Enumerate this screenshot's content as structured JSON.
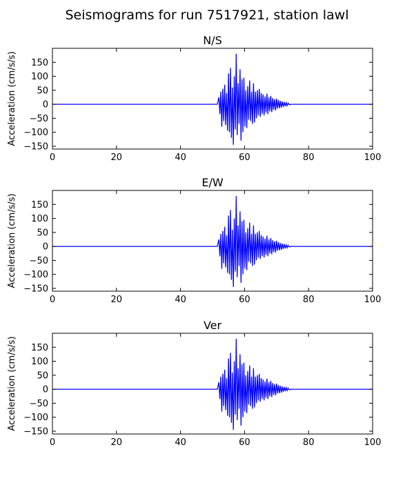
{
  "figure": {
    "title": "Seismograms for run 7517921, station lawl",
    "background": "#ffffff",
    "trace_color": "#0000ff"
  },
  "chart_data": [
    {
      "type": "line",
      "title": "N/S",
      "xlabel": "",
      "ylabel": "Acceleration (cm/s/s)",
      "xlim": [
        0,
        100
      ],
      "ylim": [
        -160,
        200
      ],
      "xticks": [
        "0",
        "20",
        "40",
        "60",
        "80",
        "100"
      ],
      "yticks": [
        "150",
        "100",
        "50",
        "0",
        "−50",
        "−100",
        "−150"
      ],
      "grid": false,
      "x": [
        0,
        51.5,
        52.0,
        52.3,
        52.6,
        52.9,
        53.2,
        53.5,
        53.8,
        54.1,
        54.4,
        54.7,
        55.0,
        55.3,
        55.6,
        55.9,
        56.2,
        56.5,
        56.8,
        57.1,
        57.4,
        57.7,
        58.0,
        58.3,
        58.6,
        58.9,
        59.2,
        59.5,
        59.8,
        60.1,
        60.4,
        60.7,
        61.0,
        61.3,
        61.6,
        61.9,
        62.2,
        62.5,
        62.8,
        63.1,
        63.4,
        63.7,
        64.0,
        64.3,
        64.6,
        64.9,
        65.2,
        65.5,
        65.8,
        66.1,
        66.4,
        66.7,
        67.0,
        67.3,
        67.6,
        67.9,
        68.2,
        68.5,
        68.8,
        69.1,
        69.4,
        69.7,
        70.0,
        70.3,
        70.6,
        70.9,
        71.2,
        71.5,
        71.8,
        72.1,
        72.4,
        72.7,
        73.0,
        73.3,
        73.6,
        74.0,
        74.5,
        100
      ],
      "values": [
        0,
        0,
        25,
        -35,
        45,
        -80,
        55,
        -60,
        70,
        -75,
        40,
        -95,
        110,
        -100,
        130,
        -120,
        60,
        -145,
        100,
        -90,
        180,
        -110,
        75,
        -70,
        125,
        -130,
        90,
        -100,
        95,
        -80,
        50,
        -85,
        65,
        -55,
        85,
        -60,
        45,
        -70,
        75,
        -65,
        45,
        -50,
        50,
        -40,
        55,
        -45,
        40,
        -35,
        35,
        -40,
        28,
        -30,
        38,
        -35,
        25,
        -25,
        30,
        -28,
        22,
        -20,
        18,
        -22,
        20,
        -15,
        15,
        -14,
        12,
        -12,
        10,
        -9,
        8,
        -7,
        6,
        -5,
        4,
        -2,
        0,
        0
      ]
    },
    {
      "type": "line",
      "title": "E/W",
      "xlabel": "",
      "ylabel": "Acceleration (cm/s/s)",
      "xlim": [
        0,
        100
      ],
      "ylim": [
        -160,
        200
      ],
      "xticks": [
        "0",
        "20",
        "40",
        "60",
        "80",
        "100"
      ],
      "yticks": [
        "150",
        "100",
        "50",
        "0",
        "−50",
        "−100",
        "−150"
      ],
      "grid": false,
      "x": [
        0,
        51.5,
        52.0,
        52.3,
        52.6,
        52.9,
        53.2,
        53.5,
        53.8,
        54.1,
        54.4,
        54.7,
        55.0,
        55.3,
        55.6,
        55.9,
        56.2,
        56.5,
        56.8,
        57.1,
        57.4,
        57.7,
        58.0,
        58.3,
        58.6,
        58.9,
        59.2,
        59.5,
        59.8,
        60.1,
        60.4,
        60.7,
        61.0,
        61.3,
        61.6,
        61.9,
        62.2,
        62.5,
        62.8,
        63.1,
        63.4,
        63.7,
        64.0,
        64.3,
        64.6,
        64.9,
        65.2,
        65.5,
        65.8,
        66.1,
        66.4,
        66.7,
        67.0,
        67.3,
        67.6,
        67.9,
        68.2,
        68.5,
        68.8,
        69.1,
        69.4,
        69.7,
        70.0,
        70.3,
        70.6,
        70.9,
        71.2,
        71.5,
        71.8,
        72.1,
        72.4,
        72.7,
        73.0,
        73.3,
        73.6,
        74.0,
        74.5,
        100
      ],
      "values": [
        0,
        0,
        25,
        -35,
        45,
        -80,
        55,
        -60,
        70,
        -75,
        40,
        -95,
        110,
        -100,
        130,
        -120,
        60,
        -145,
        100,
        -90,
        180,
        -110,
        75,
        -70,
        125,
        -130,
        90,
        -100,
        95,
        -80,
        50,
        -85,
        65,
        -55,
        85,
        -60,
        45,
        -70,
        75,
        -65,
        45,
        -50,
        50,
        -40,
        55,
        -45,
        40,
        -35,
        35,
        -40,
        28,
        -30,
        38,
        -35,
        25,
        -25,
        30,
        -28,
        22,
        -20,
        18,
        -22,
        20,
        -15,
        15,
        -14,
        12,
        -12,
        10,
        -9,
        8,
        -7,
        6,
        -5,
        4,
        -2,
        0,
        0
      ]
    },
    {
      "type": "line",
      "title": "Ver",
      "xlabel": "",
      "ylabel": "Acceleration (cm/s/s)",
      "xlim": [
        0,
        100
      ],
      "ylim": [
        -160,
        200
      ],
      "xticks": [
        "0",
        "20",
        "40",
        "60",
        "80",
        "100"
      ],
      "yticks": [
        "150",
        "100",
        "50",
        "0",
        "−50",
        "−100",
        "−150"
      ],
      "grid": false,
      "x": [
        0,
        51.5,
        52.0,
        52.3,
        52.6,
        52.9,
        53.2,
        53.5,
        53.8,
        54.1,
        54.4,
        54.7,
        55.0,
        55.3,
        55.6,
        55.9,
        56.2,
        56.5,
        56.8,
        57.1,
        57.4,
        57.7,
        58.0,
        58.3,
        58.6,
        58.9,
        59.2,
        59.5,
        59.8,
        60.1,
        60.4,
        60.7,
        61.0,
        61.3,
        61.6,
        61.9,
        62.2,
        62.5,
        62.8,
        63.1,
        63.4,
        63.7,
        64.0,
        64.3,
        64.6,
        64.9,
        65.2,
        65.5,
        65.8,
        66.1,
        66.4,
        66.7,
        67.0,
        67.3,
        67.6,
        67.9,
        68.2,
        68.5,
        68.8,
        69.1,
        69.4,
        69.7,
        70.0,
        70.3,
        70.6,
        70.9,
        71.2,
        71.5,
        71.8,
        72.1,
        72.4,
        72.7,
        73.0,
        73.3,
        73.6,
        74.0,
        74.5,
        100
      ],
      "values": [
        0,
        0,
        25,
        -35,
        45,
        -80,
        55,
        -60,
        70,
        -75,
        40,
        -95,
        110,
        -100,
        130,
        -120,
        60,
        -145,
        100,
        -90,
        180,
        -110,
        75,
        -70,
        125,
        -130,
        90,
        -100,
        95,
        -80,
        50,
        -85,
        65,
        -55,
        85,
        -60,
        45,
        -70,
        75,
        -65,
        45,
        -50,
        50,
        -40,
        55,
        -45,
        40,
        -35,
        35,
        -40,
        28,
        -30,
        38,
        -35,
        25,
        -25,
        30,
        -28,
        22,
        -20,
        18,
        -22,
        20,
        -15,
        15,
        -14,
        12,
        -12,
        10,
        -9,
        8,
        -7,
        6,
        -5,
        4,
        -2,
        0,
        0
      ]
    }
  ]
}
